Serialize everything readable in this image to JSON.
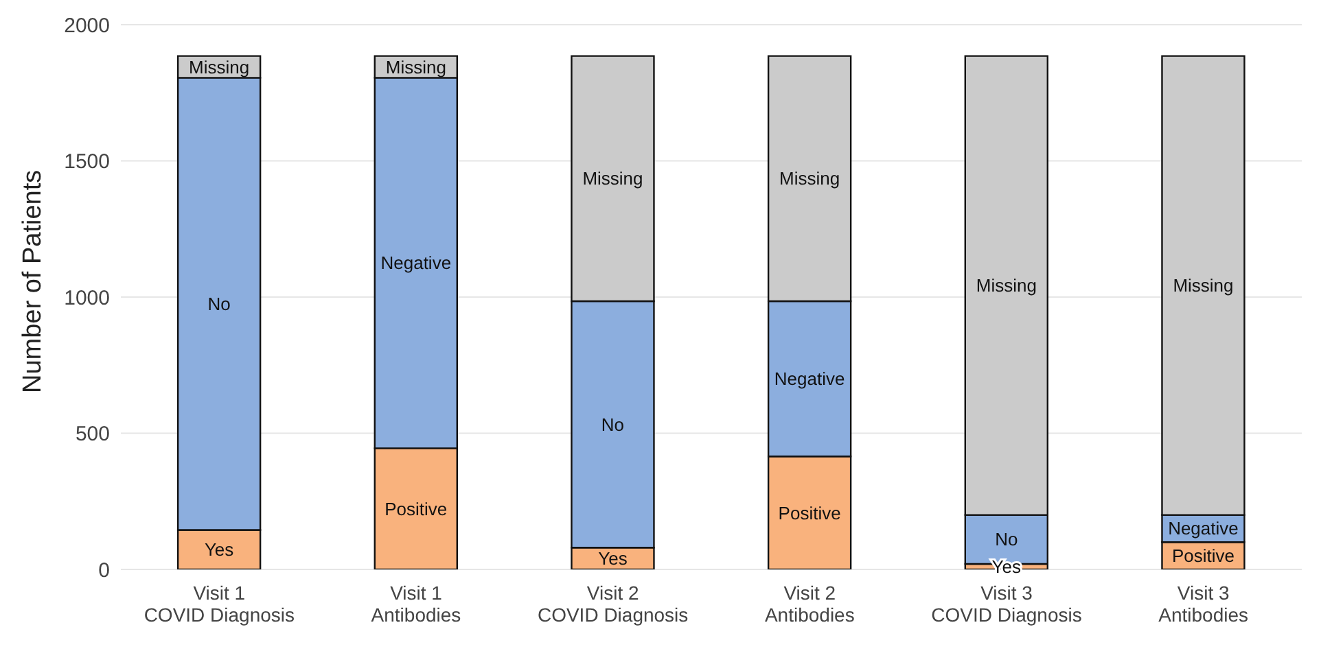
{
  "chart_data": {
    "type": "bar",
    "stacked": true,
    "ylabel": "Number of Patients",
    "categories": [
      "Visit 1\nCOVID Diagnosis",
      "Visit 1\nAntibodies",
      "Visit 2\nCOVID Diagnosis",
      "Visit 2\nAntibodies",
      "Visit 3\nCOVID Diagnosis",
      "Visit 3\nAntibodies"
    ],
    "series": [
      {
        "color": "#f9b27d",
        "values": [
          145,
          445,
          80,
          415,
          20,
          100
        ],
        "value_labels": [
          "Yes",
          "Positive",
          "Yes",
          "Positive",
          "Yes",
          "Positive"
        ]
      },
      {
        "color": "#8caede",
        "values": [
          1660,
          1360,
          905,
          570,
          180,
          100
        ],
        "value_labels": [
          "No",
          "Negative",
          "No",
          "Negative",
          "No",
          "Negative"
        ]
      },
      {
        "color": "#cbcbcb",
        "values": [
          80,
          80,
          900,
          900,
          1685,
          1685
        ],
        "value_labels": [
          "Missing",
          "Missing",
          "Missing",
          "Missing",
          "Missing",
          "Missing"
        ]
      }
    ],
    "ylim": [
      0,
      2000
    ],
    "yticks": [
      0,
      500,
      1000,
      1500,
      2000
    ],
    "grid": "y",
    "legend": false
  }
}
